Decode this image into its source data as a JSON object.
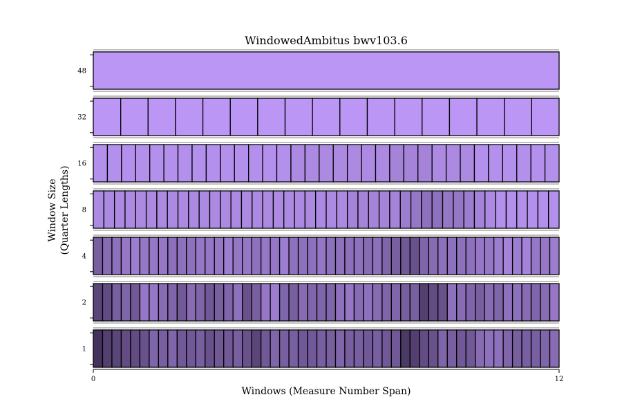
{
  "chart_data": {
    "type": "heatmap",
    "title": "WindowedAmbitus bwv103.6",
    "xlabel": "Windows (Measure Number Span)",
    "ylabel_line1": "Window Size",
    "ylabel_line2": "(Quarter Lengths)",
    "x_ticks": [
      "0",
      "12"
    ],
    "xlim": [
      0,
      12
    ],
    "rows": [
      {
        "label": "1",
        "values": [
          0.85,
          0.75,
          0.7,
          0.65,
          0.65,
          0.6,
          0.45,
          0.5,
          0.45,
          0.55,
          0.55,
          0.5,
          0.6,
          0.55,
          0.55,
          0.5,
          0.6,
          0.7,
          0.55,
          0.45,
          0.5,
          0.5,
          0.55,
          0.55,
          0.5,
          0.5,
          0.45,
          0.5,
          0.5,
          0.55,
          0.5,
          0.55,
          0.55,
          0.8,
          0.75,
          0.65,
          0.6,
          0.45,
          0.5,
          0.55,
          0.55,
          0.4,
          0.35,
          0.35,
          0.45,
          0.5,
          0.5,
          0.5,
          0.45,
          0.4
        ]
      },
      {
        "label": "2",
        "values": [
          0.7,
          0.65,
          0.5,
          0.45,
          0.55,
          0.3,
          0.3,
          0.4,
          0.45,
          0.55,
          0.4,
          0.45,
          0.55,
          0.5,
          0.45,
          0.35,
          0.6,
          0.5,
          0.3,
          0.25,
          0.45,
          0.5,
          0.4,
          0.45,
          0.45,
          0.45,
          0.35,
          0.3,
          0.4,
          0.35,
          0.4,
          0.45,
          0.45,
          0.5,
          0.5,
          0.75,
          0.65,
          0.6,
          0.35,
          0.4,
          0.45,
          0.5,
          0.4,
          0.45,
          0.35,
          0.35,
          0.4,
          0.45,
          0.4,
          0.3
        ]
      },
      {
        "label": "4",
        "values": [
          0.5,
          0.4,
          0.35,
          0.3,
          0.25,
          0.3,
          0.3,
          0.3,
          0.35,
          0.35,
          0.35,
          0.3,
          0.3,
          0.3,
          0.25,
          0.3,
          0.3,
          0.35,
          0.3,
          0.3,
          0.25,
          0.35,
          0.35,
          0.35,
          0.3,
          0.35,
          0.35,
          0.35,
          0.35,
          0.4,
          0.35,
          0.45,
          0.5,
          0.55,
          0.6,
          0.45,
          0.4,
          0.35,
          0.35,
          0.35,
          0.35,
          0.3,
          0.3,
          0.25,
          0.2,
          0.25,
          0.2,
          0.3,
          0.3,
          0.25
        ]
      },
      {
        "label": "8",
        "values": [
          0.15,
          0.15,
          0.15,
          0.15,
          0.15,
          0.15,
          0.15,
          0.15,
          0.15,
          0.15,
          0.15,
          0.15,
          0.15,
          0.15,
          0.15,
          0.15,
          0.15,
          0.15,
          0.15,
          0.15,
          0.15,
          0.15,
          0.15,
          0.15,
          0.2,
          0.2,
          0.2,
          0.2,
          0.2,
          0.25,
          0.3,
          0.35,
          0.35,
          0.3,
          0.3,
          0.25,
          0.2,
          0.15,
          0.1,
          0.1,
          0.1,
          0.1,
          0.1,
          0.1
        ]
      },
      {
        "label": "16",
        "values": [
          0.1,
          0.1,
          0.1,
          0.1,
          0.1,
          0.1,
          0.1,
          0.1,
          0.1,
          0.1,
          0.1,
          0.1,
          0.1,
          0.1,
          0.15,
          0.15,
          0.15,
          0.15,
          0.15,
          0.15,
          0.15,
          0.2,
          0.2,
          0.2,
          0.15,
          0.15,
          0.15,
          0.1,
          0.1,
          0.1,
          0.1,
          0.1,
          0.1
        ]
      },
      {
        "label": "32",
        "values": [
          0.05,
          0.05,
          0.05,
          0.05,
          0.05,
          0.05,
          0.05,
          0.05,
          0.05,
          0.05,
          0.05,
          0.05,
          0.05,
          0.05,
          0.05,
          0.05,
          0.05
        ]
      },
      {
        "label": "48",
        "values": [
          0.05
        ]
      }
    ]
  },
  "colors": {
    "light": "#c29cff",
    "dark": "#2e2140",
    "edge": "#000000",
    "axis": "#000000"
  }
}
